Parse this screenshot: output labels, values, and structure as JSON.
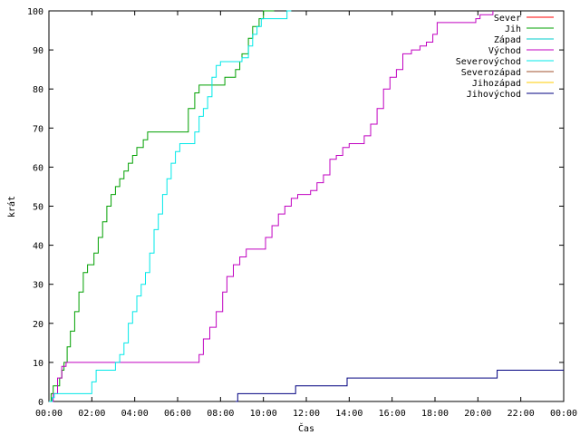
{
  "chart_data": {
    "type": "line",
    "title": "",
    "xlabel": "Čas",
    "ylabel": "krát",
    "xlim": [
      0,
      24
    ],
    "ylim": [
      0,
      100
    ],
    "x_ticks": [
      {
        "value": 0,
        "label": "00:00"
      },
      {
        "value": 2,
        "label": "02:00"
      },
      {
        "value": 4,
        "label": "04:00"
      },
      {
        "value": 6,
        "label": "06:00"
      },
      {
        "value": 8,
        "label": "08:00"
      },
      {
        "value": 10,
        "label": "10:00"
      },
      {
        "value": 12,
        "label": "12:00"
      },
      {
        "value": 14,
        "label": "14:00"
      },
      {
        "value": 16,
        "label": "16:00"
      },
      {
        "value": 18,
        "label": "18:00"
      },
      {
        "value": 20,
        "label": "20:00"
      },
      {
        "value": 22,
        "label": "22:00"
      },
      {
        "value": 24,
        "label": "00:00"
      }
    ],
    "y_ticks": [
      0,
      10,
      20,
      30,
      40,
      50,
      60,
      70,
      80,
      90,
      100
    ],
    "grid": false,
    "legend_position": "top-right",
    "series": [
      {
        "name": "Sever",
        "color": "#ff0000",
        "points": []
      },
      {
        "name": "Jih",
        "color": "#00a000",
        "points": [
          [
            0.0,
            0
          ],
          [
            0.1,
            2
          ],
          [
            0.2,
            4
          ],
          [
            0.5,
            6
          ],
          [
            0.6,
            8
          ],
          [
            0.7,
            10
          ],
          [
            0.85,
            14
          ],
          [
            1.0,
            18
          ],
          [
            1.2,
            23
          ],
          [
            1.4,
            28
          ],
          [
            1.6,
            33
          ],
          [
            1.8,
            35
          ],
          [
            2.1,
            38
          ],
          [
            2.3,
            42
          ],
          [
            2.5,
            46
          ],
          [
            2.7,
            50
          ],
          [
            2.9,
            53
          ],
          [
            3.1,
            55
          ],
          [
            3.3,
            57
          ],
          [
            3.5,
            59
          ],
          [
            3.7,
            61
          ],
          [
            3.9,
            63
          ],
          [
            4.1,
            65
          ],
          [
            4.4,
            67
          ],
          [
            4.6,
            69
          ],
          [
            6.2,
            69
          ],
          [
            6.5,
            75
          ],
          [
            6.8,
            79
          ],
          [
            7.0,
            81
          ],
          [
            8.0,
            81
          ],
          [
            8.2,
            83
          ],
          [
            8.5,
            83
          ],
          [
            8.7,
            85
          ],
          [
            8.9,
            87
          ],
          [
            9.0,
            89
          ],
          [
            9.3,
            93
          ],
          [
            9.5,
            96
          ],
          [
            9.8,
            98
          ],
          [
            10.0,
            100
          ],
          [
            10.5,
            100
          ]
        ]
      },
      {
        "name": "Západ",
        "color": "#00cccc",
        "points": []
      },
      {
        "name": "Východ",
        "color": "#c000c0",
        "points": [
          [
            0.0,
            0
          ],
          [
            0.2,
            2
          ],
          [
            0.4,
            6
          ],
          [
            0.6,
            9
          ],
          [
            0.8,
            10
          ],
          [
            6.8,
            10
          ],
          [
            7.0,
            12
          ],
          [
            7.2,
            16
          ],
          [
            7.5,
            19
          ],
          [
            7.8,
            23
          ],
          [
            8.1,
            28
          ],
          [
            8.3,
            32
          ],
          [
            8.6,
            35
          ],
          [
            8.9,
            37
          ],
          [
            9.2,
            39
          ],
          [
            9.9,
            39
          ],
          [
            10.1,
            42
          ],
          [
            10.4,
            45
          ],
          [
            10.7,
            48
          ],
          [
            11.0,
            50
          ],
          [
            11.3,
            52
          ],
          [
            11.6,
            53
          ],
          [
            12.2,
            54
          ],
          [
            12.5,
            56
          ],
          [
            12.8,
            58
          ],
          [
            13.1,
            62
          ],
          [
            13.4,
            63
          ],
          [
            13.7,
            65
          ],
          [
            14.0,
            66
          ],
          [
            14.5,
            66
          ],
          [
            14.7,
            68
          ],
          [
            15.0,
            71
          ],
          [
            15.3,
            75
          ],
          [
            15.6,
            80
          ],
          [
            15.9,
            83
          ],
          [
            16.2,
            85
          ],
          [
            16.5,
            89
          ],
          [
            16.9,
            90
          ],
          [
            17.3,
            91
          ],
          [
            17.6,
            92
          ],
          [
            17.9,
            94
          ],
          [
            18.1,
            97
          ],
          [
            19.7,
            97
          ],
          [
            19.9,
            98
          ],
          [
            20.1,
            99
          ],
          [
            20.7,
            100
          ]
        ]
      },
      {
        "name": "Severovýchod",
        "color": "#00e8e8",
        "points": [
          [
            0.0,
            0
          ],
          [
            0.15,
            1
          ],
          [
            0.25,
            2
          ],
          [
            1.9,
            2
          ],
          [
            2.0,
            5
          ],
          [
            2.2,
            8
          ],
          [
            2.9,
            8
          ],
          [
            3.1,
            10
          ],
          [
            3.3,
            12
          ],
          [
            3.5,
            15
          ],
          [
            3.7,
            20
          ],
          [
            3.9,
            23
          ],
          [
            4.1,
            27
          ],
          [
            4.3,
            30
          ],
          [
            4.5,
            33
          ],
          [
            4.7,
            38
          ],
          [
            4.9,
            44
          ],
          [
            5.1,
            48
          ],
          [
            5.3,
            53
          ],
          [
            5.5,
            57
          ],
          [
            5.7,
            61
          ],
          [
            5.9,
            64
          ],
          [
            6.1,
            66
          ],
          [
            6.5,
            66
          ],
          [
            6.8,
            69
          ],
          [
            7.0,
            73
          ],
          [
            7.2,
            75
          ],
          [
            7.4,
            78
          ],
          [
            7.6,
            83
          ],
          [
            7.8,
            86
          ],
          [
            8.0,
            87
          ],
          [
            8.6,
            87
          ],
          [
            9.0,
            88
          ],
          [
            9.3,
            91
          ],
          [
            9.5,
            94
          ],
          [
            9.7,
            96
          ],
          [
            9.9,
            98
          ],
          [
            10.5,
            98
          ],
          [
            11.1,
            100
          ],
          [
            11.3,
            100
          ]
        ]
      },
      {
        "name": "Severozápad",
        "color": "#a0522d",
        "points": []
      },
      {
        "name": "Jihozápad",
        "color": "#ffcc00",
        "points": []
      },
      {
        "name": "Jihovýchod",
        "color": "#000080",
        "points": [
          [
            8.7,
            0
          ],
          [
            8.8,
            2
          ],
          [
            11.3,
            2
          ],
          [
            11.5,
            4
          ],
          [
            13.8,
            4
          ],
          [
            13.9,
            6
          ],
          [
            20.8,
            6
          ],
          [
            20.9,
            8
          ],
          [
            24.0,
            8
          ]
        ]
      }
    ]
  }
}
